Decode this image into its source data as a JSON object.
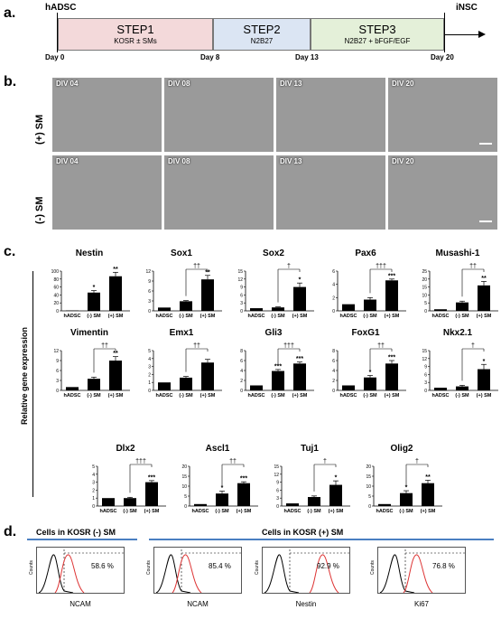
{
  "panels": {
    "a": "a.",
    "b": "b.",
    "c": "c.",
    "d": "d."
  },
  "timeline": {
    "start_label": "hADSC",
    "end_label": "iNSC",
    "steps": [
      {
        "title": "STEP1",
        "sub": "KOSR ± SMs",
        "color": "#f3d9da"
      },
      {
        "title": "STEP2",
        "sub": "N2B27",
        "color": "#dbe5f3"
      },
      {
        "title": "STEP3",
        "sub": "N2B27 + bFGF/EGF",
        "color": "#e4f0d9"
      }
    ],
    "days": [
      "Day 0",
      "Day 8",
      "Day 13",
      "Day 20"
    ]
  },
  "micro": {
    "rows": [
      "(+) SM",
      "(-) SM"
    ],
    "labels": [
      "DIV 04",
      "DIV 08",
      "DIV 13",
      "DIV 20"
    ]
  },
  "gene_ylabel": "Relative gene expression",
  "xcats": [
    "hADSC",
    "(-) SM",
    "(+) SM"
  ],
  "chart_data": [
    {
      "type": "bar",
      "title": "Nestin",
      "categories": [
        "hADSC",
        "(-) SM",
        "(+) SM"
      ],
      "values": [
        1,
        46,
        87
      ],
      "errors": [
        0,
        5,
        10
      ],
      "yticks": [
        0,
        20,
        40,
        60,
        80,
        100
      ],
      "ylim": [
        0,
        100
      ],
      "stars": [
        "",
        "*",
        "**"
      ],
      "dagger": ""
    },
    {
      "type": "bar",
      "title": "Sox1",
      "categories": [
        "hADSC",
        "(-) SM",
        "(+) SM"
      ],
      "values": [
        1,
        2.9,
        9.5
      ],
      "errors": [
        0,
        0.2,
        1.2
      ],
      "yticks": [
        0,
        3,
        6,
        9,
        12
      ],
      "ylim": [
        0,
        12
      ],
      "stars": [
        "",
        "",
        "**"
      ],
      "dagger": "††"
    },
    {
      "type": "bar",
      "title": "Sox2",
      "categories": [
        "hADSC",
        "(-) SM",
        "(+) SM"
      ],
      "values": [
        1,
        1.3,
        9
      ],
      "errors": [
        0,
        0.2,
        1.5
      ],
      "yticks": [
        0,
        3,
        6,
        9,
        12,
        15
      ],
      "ylim": [
        0,
        15
      ],
      "stars": [
        "",
        "",
        "*"
      ],
      "dagger": "†"
    },
    {
      "type": "bar",
      "title": "Pax6",
      "categories": [
        "hADSC",
        "(-) SM",
        "(+) SM"
      ],
      "values": [
        1,
        1.7,
        4.6
      ],
      "errors": [
        0,
        0.3,
        0.2
      ],
      "yticks": [
        0,
        2,
        4,
        6
      ],
      "ylim": [
        0,
        6
      ],
      "stars": [
        "",
        "",
        "***"
      ],
      "dagger": "†††"
    },
    {
      "type": "bar",
      "title": "Musashi-1",
      "categories": [
        "hADSC",
        "(-) SM",
        "(+) SM"
      ],
      "values": [
        1,
        5.3,
        16
      ],
      "errors": [
        0,
        0.8,
        2.5
      ],
      "yticks": [
        0,
        5,
        10,
        15,
        20,
        25
      ],
      "ylim": [
        0,
        25
      ],
      "stars": [
        "",
        "",
        "**"
      ],
      "dagger": "††"
    },
    {
      "type": "bar",
      "title": "Vimentin",
      "categories": [
        "hADSC",
        "(-) SM",
        "(+) SM"
      ],
      "values": [
        1,
        3.5,
        9
      ],
      "errors": [
        0,
        0.5,
        1.2
      ],
      "yticks": [
        0,
        3,
        6,
        9,
        12
      ],
      "ylim": [
        0,
        12
      ],
      "stars": [
        "",
        "",
        "**"
      ],
      "dagger": "††"
    },
    {
      "type": "bar",
      "title": "Emx1",
      "categories": [
        "hADSC",
        "(-) SM",
        "(+) SM"
      ],
      "values": [
        1,
        1.6,
        3.5
      ],
      "errors": [
        0,
        0.15,
        0.4
      ],
      "yticks": [
        0,
        1,
        2,
        3,
        4,
        5
      ],
      "ylim": [
        0,
        5
      ],
      "stars": [
        "",
        "",
        ""
      ],
      "dagger": "††"
    },
    {
      "type": "bar",
      "title": "Gli3",
      "categories": [
        "hADSC",
        "(-) SM",
        "(+) SM"
      ],
      "values": [
        1,
        3.9,
        5.4
      ],
      "errors": [
        0,
        0.3,
        0.3
      ],
      "yticks": [
        0,
        2,
        4,
        6,
        8
      ],
      "ylim": [
        0,
        8
      ],
      "stars": [
        "",
        "***",
        "***"
      ],
      "dagger": "†††"
    },
    {
      "type": "bar",
      "title": "FoxG1",
      "categories": [
        "hADSC",
        "(-) SM",
        "(+) SM"
      ],
      "values": [
        1,
        2.6,
        5.4
      ],
      "errors": [
        0,
        0.4,
        0.6
      ],
      "yticks": [
        0,
        2,
        4,
        6,
        8
      ],
      "ylim": [
        0,
        8
      ],
      "stars": [
        "",
        "*",
        "***"
      ],
      "dagger": "††"
    },
    {
      "type": "bar",
      "title": "Nkx2.1",
      "categories": [
        "hADSC",
        "(-) SM",
        "(+) SM"
      ],
      "values": [
        1,
        1.5,
        8
      ],
      "errors": [
        0,
        0.4,
        1.8
      ],
      "yticks": [
        0,
        3,
        6,
        9,
        12,
        15
      ],
      "ylim": [
        0,
        15
      ],
      "stars": [
        "",
        "",
        "*"
      ],
      "dagger": "†"
    },
    {
      "type": "bar",
      "title": "Dlx2",
      "categories": [
        "hADSC",
        "(-) SM",
        "(+) SM"
      ],
      "values": [
        1,
        1,
        3
      ],
      "errors": [
        0,
        0.1,
        0.2
      ],
      "yticks": [
        0,
        1,
        2,
        3,
        4,
        5
      ],
      "ylim": [
        0,
        5
      ],
      "stars": [
        "",
        "",
        "***"
      ],
      "dagger": "†††"
    },
    {
      "type": "bar",
      "title": "Ascl1",
      "categories": [
        "hADSC",
        "(-) SM",
        "(+) SM"
      ],
      "values": [
        1,
        6.3,
        11.5
      ],
      "errors": [
        0,
        1.2,
        0.7
      ],
      "yticks": [
        0,
        5,
        10,
        15,
        20
      ],
      "ylim": [
        0,
        20
      ],
      "stars": [
        "",
        "*",
        "***"
      ],
      "dagger": "††"
    },
    {
      "type": "bar",
      "title": "Tuj1",
      "categories": [
        "hADSC",
        "(-) SM",
        "(+) SM"
      ],
      "values": [
        1,
        3.4,
        8
      ],
      "errors": [
        0,
        0.4,
        1.5
      ],
      "yticks": [
        0,
        3,
        6,
        9,
        12,
        15
      ],
      "ylim": [
        0,
        15
      ],
      "stars": [
        "",
        "",
        "*"
      ],
      "dagger": "†"
    },
    {
      "type": "bar",
      "title": "Olig2",
      "categories": [
        "hADSC",
        "(-) SM",
        "(+) SM"
      ],
      "values": [
        1,
        6.5,
        11.5
      ],
      "errors": [
        0,
        1.2,
        1.5
      ],
      "yticks": [
        0,
        5,
        10,
        15,
        20
      ],
      "ylim": [
        0,
        20
      ],
      "stars": [
        "",
        "*",
        "**"
      ],
      "dagger": "†"
    }
  ],
  "flow": {
    "group_left": "Cells in KOSR (-) SM",
    "group_right": "Cells in KOSR (+) SM",
    "line_color": "#4a7fc1",
    "plots": [
      {
        "marker": "NCAM",
        "percent": "58.6 %"
      },
      {
        "marker": "NCAM",
        "percent": "85.4 %"
      },
      {
        "marker": "Nestin",
        "percent": "92.9 %"
      },
      {
        "marker": "Ki67",
        "percent": "76.8 %"
      }
    ],
    "ylabel": "Counts"
  }
}
